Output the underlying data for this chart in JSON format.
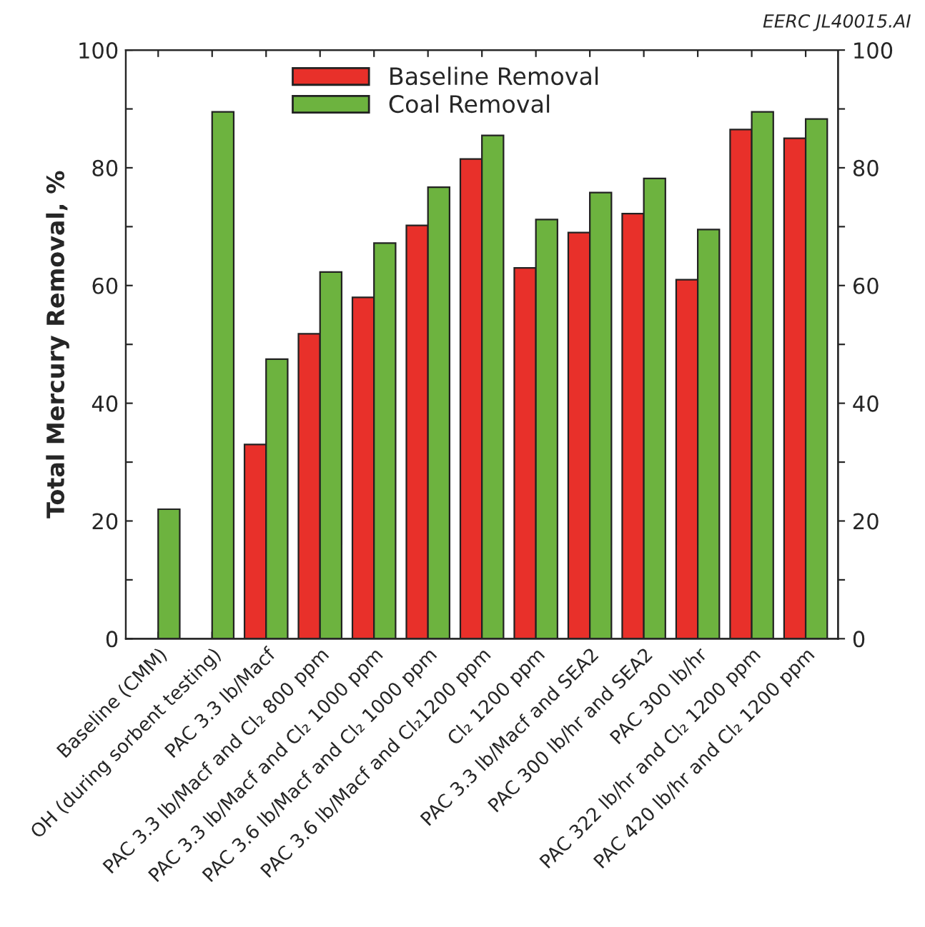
{
  "chart_data": {
    "type": "bar",
    "ylabel": "Total Mercury Removal, %",
    "annotations": [
      "EERC JL40015.AI"
    ],
    "categories": [
      "Baseline (CMM)",
      "OH (during sorbent testing)",
      "PAC 3.3 lb/Macf",
      "PAC 3.3 lb/Macf and Cl₂ 800 ppm",
      "PAC 3.3 lb/Macf and Cl₂ 1000 ppm",
      "PAC 3.6 lb/Macf and Cl₂ 1000 ppm",
      "PAC 3.6 lb/Macf and Cl₂1200 ppm",
      "Cl₂ 1200 ppm",
      "PAC 3.3 lb/Macf and SEA2",
      "PAC 300 lb/hr and SEA2",
      "PAC 300 lb/hr",
      "PAC 322 lb/hr and Cl₂ 1200 ppm",
      "PAC 420 lb/hr and Cl₂ 1200 ppm"
    ],
    "series": [
      {
        "name": "Baseline Removal",
        "color": "#e8302a",
        "values": [
          null,
          null,
          33,
          51.8,
          58,
          70.2,
          81.5,
          63,
          69,
          72.2,
          61,
          86.5,
          85
        ]
      },
      {
        "name": "Coal Removal",
        "color": "#6db33f",
        "values": [
          22,
          89.5,
          47.5,
          62.3,
          67.2,
          76.7,
          85.5,
          71.2,
          75.8,
          78.2,
          69.5,
          89.5,
          88.3
        ]
      }
    ],
    "ylim": [
      0,
      100
    ],
    "yticks": [
      0,
      {
        "value": 10,
        "label": null
      },
      20,
      {
        "value": 30,
        "label": null
      },
      40,
      {
        "value": 50,
        "label": null
      },
      60,
      {
        "value": 70,
        "label": null
      },
      80,
      {
        "value": 90,
        "label": null
      },
      100
    ],
    "y2lim": [
      0,
      100
    ],
    "y2ticks": [
      0,
      {
        "value": 10,
        "label": null
      },
      20,
      {
        "value": 30,
        "label": null
      },
      40,
      {
        "value": 50,
        "label": null
      },
      60,
      {
        "value": 70,
        "label": null
      },
      80,
      {
        "value": 90,
        "label": null
      },
      100
    ],
    "legend": "top",
    "grid": false
  }
}
